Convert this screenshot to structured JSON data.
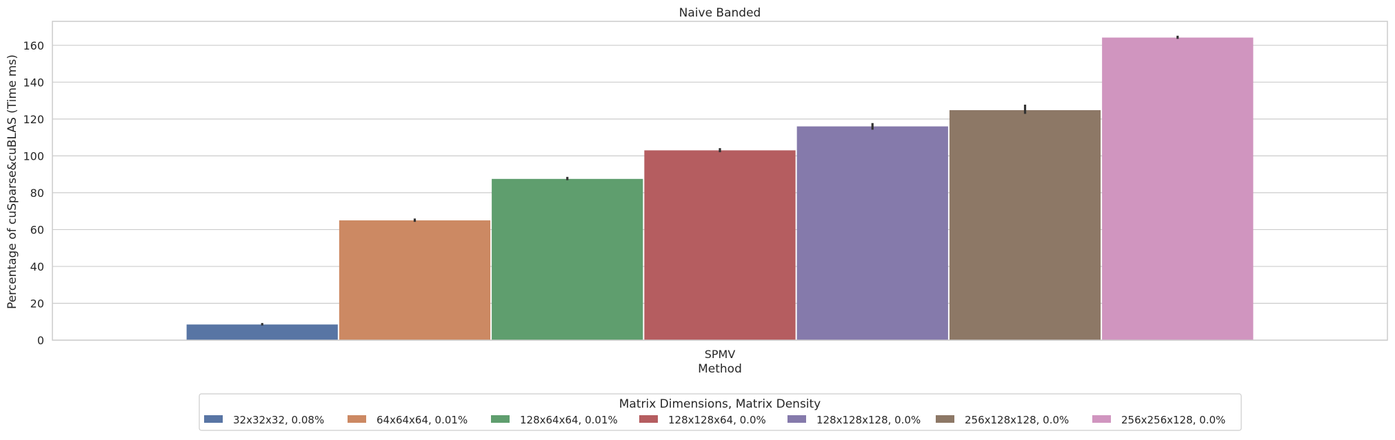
{
  "chart_data": {
    "type": "bar",
    "title": "Naive Banded",
    "xlabel": "Method",
    "ylabel": "Percentage of cuSparse&cuBLAS (Time ms)",
    "categories": [
      "SPMV"
    ],
    "ylim": [
      0,
      173
    ],
    "yticks": [
      0,
      20,
      40,
      60,
      80,
      100,
      120,
      140,
      160
    ],
    "grid": "horizontal",
    "legend": {
      "title": "Matrix Dimensions, Matrix Density",
      "placement": "bottom-center"
    },
    "series": [
      {
        "name": "32x32x32, 0.08%",
        "values": [
          8.5
        ],
        "error": [
          [
            8.0,
            9.3
          ]
        ],
        "color": "#5875a4"
      },
      {
        "name": "64x64x64, 0.01%",
        "values": [
          65
        ],
        "error": [
          [
            64.2,
            66.0
          ]
        ],
        "color": "#cc8963"
      },
      {
        "name": "128x64x64, 0.01%",
        "values": [
          87.5
        ],
        "error": [
          [
            86.8,
            88.6
          ]
        ],
        "color": "#5f9e6e"
      },
      {
        "name": "128x128x64, 0.0%",
        "values": [
          103
        ],
        "error": [
          [
            102.0,
            104.2
          ]
        ],
        "color": "#b55d60"
      },
      {
        "name": "128x128x128, 0.0%",
        "values": [
          116
        ],
        "error": [
          [
            114.2,
            117.8
          ]
        ],
        "color": "#857aab"
      },
      {
        "name": "256x128x128, 0.0%",
        "values": [
          124.8
        ],
        "error": [
          [
            122.8,
            127.8
          ]
        ],
        "color": "#8d7866"
      },
      {
        "name": "256x256x128, 0.0%",
        "values": [
          164.2
        ],
        "error": [
          [
            163.5,
            165.2
          ]
        ],
        "color": "#d095bf"
      }
    ]
  }
}
